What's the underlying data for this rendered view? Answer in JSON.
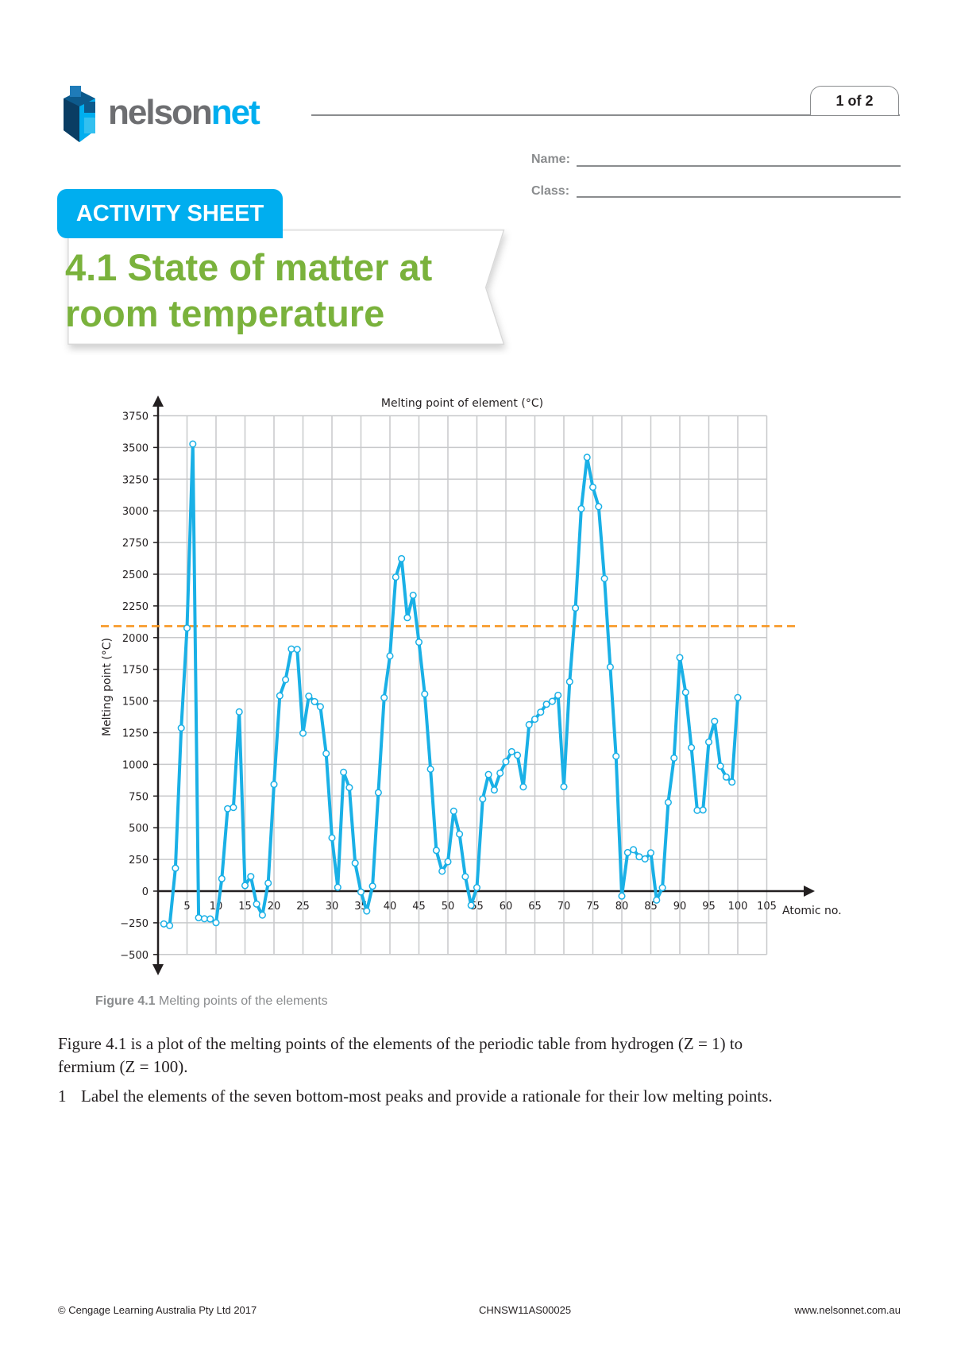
{
  "header": {
    "logo_part1": "nelson",
    "logo_part2": "net",
    "page_indicator": "1 of 2",
    "name_label": "Name:",
    "class_label": "Class:"
  },
  "badge": "ACTIVITY SHEET",
  "title_line1": "4.1 State of matter at",
  "title_line2": "room temperature",
  "colors": {
    "brand_blue": "#00aeef",
    "title_green": "#7ab23c",
    "series": "#1ab0e6",
    "reference_line": "#f7941d"
  },
  "chart_data": {
    "type": "line",
    "title": "Melting point of element (°C)",
    "xlabel": "Atomic no.",
    "ylabel": "Melting point (°C)",
    "xlim": [
      0,
      105
    ],
    "ylim": [
      -500,
      3750
    ],
    "grid": true,
    "x_ticks": [
      5,
      10,
      15,
      20,
      25,
      30,
      35,
      40,
      45,
      50,
      55,
      60,
      65,
      70,
      75,
      80,
      85,
      90,
      95,
      100,
      105
    ],
    "y_ticks": [
      -500,
      -250,
      0,
      250,
      500,
      750,
      1000,
      1250,
      1500,
      1750,
      2000,
      2250,
      2500,
      2750,
      3000,
      3250,
      3500,
      3750
    ],
    "reference_line": {
      "y": 2090,
      "style": "dashed"
    },
    "x": [
      1,
      2,
      3,
      4,
      5,
      6,
      7,
      8,
      9,
      10,
      11,
      12,
      13,
      14,
      15,
      16,
      17,
      18,
      19,
      20,
      21,
      22,
      23,
      24,
      25,
      26,
      27,
      28,
      29,
      30,
      31,
      32,
      33,
      34,
      35,
      36,
      37,
      38,
      39,
      40,
      41,
      42,
      43,
      44,
      45,
      46,
      47,
      48,
      49,
      50,
      51,
      52,
      53,
      54,
      55,
      56,
      57,
      58,
      59,
      60,
      61,
      62,
      63,
      64,
      65,
      66,
      67,
      68,
      69,
      70,
      71,
      72,
      73,
      74,
      75,
      76,
      77,
      78,
      79,
      80,
      81,
      82,
      83,
      84,
      85,
      86,
      87,
      88,
      89,
      90,
      91,
      92,
      93,
      94,
      95,
      96,
      97,
      98,
      99,
      100
    ],
    "y": [
      -259,
      -272,
      181,
      1287,
      2076,
      3527,
      -210,
      -218,
      -220,
      -249,
      98,
      650,
      660,
      1414,
      44,
      115,
      -102,
      -189,
      63,
      842,
      1541,
      1668,
      1910,
      1907,
      1246,
      1538,
      1495,
      1455,
      1085,
      420,
      30,
      938,
      817,
      221,
      -7,
      -157,
      39,
      777,
      1526,
      1855,
      2477,
      2623,
      2157,
      2334,
      1964,
      1555,
      962,
      321,
      157,
      232,
      631,
      450,
      114,
      -112,
      28,
      727,
      920,
      798,
      931,
      1021,
      1100,
      1072,
      822,
      1313,
      1356,
      1412,
      1474,
      1497,
      1545,
      824,
      1652,
      2233,
      3017,
      3422,
      3186,
      3033,
      2466,
      1768,
      1064,
      -39,
      304,
      327,
      271,
      254,
      302,
      -71,
      27,
      700,
      1050,
      1842,
      1568,
      1132,
      637,
      640,
      1176,
      1340,
      986,
      900,
      860,
      1527
    ]
  },
  "figure_caption": {
    "label": "Figure 4.1",
    "text": "Melting points of the elements"
  },
  "body": {
    "paragraph_line1": "Figure 4.1 is a plot of the melting points of the elements of the periodic table from hydrogen (Z = 1) to",
    "paragraph_line2": "fermium (Z = 100).",
    "question_number": "1",
    "question_text": "Label the elements of the seven bottom-most peaks and provide a rationale for their low melting points."
  },
  "footer": {
    "copyright": "© Cengage Learning Australia Pty Ltd 2017",
    "code": "CHNSW11AS00025",
    "website": "www.nelsonnet.com.au"
  }
}
